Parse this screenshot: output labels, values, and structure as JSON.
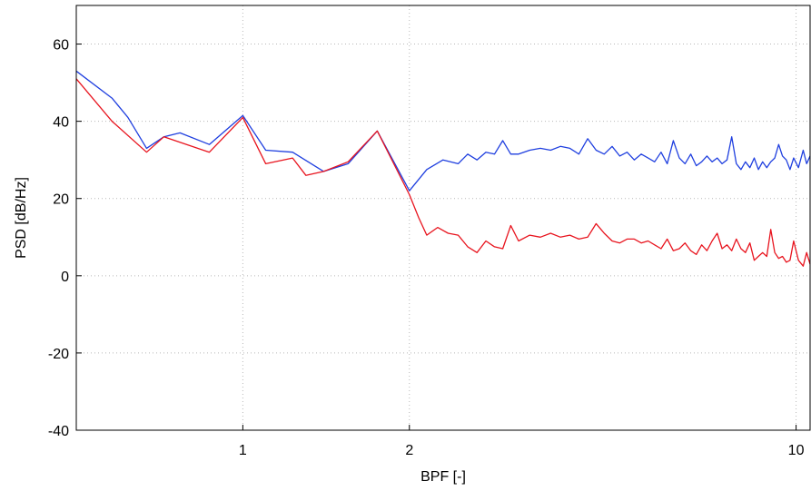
{
  "chart_data": {
    "type": "line",
    "xlabel": "BPF [-]",
    "ylabel": "PSD [dB/Hz]",
    "xscale": "log",
    "xlim": [
      0.5,
      10.6
    ],
    "ylim": [
      -40,
      70
    ],
    "xticks": [
      1,
      2,
      10
    ],
    "xtick_labels": [
      "1",
      "2",
      "10"
    ],
    "yticks": [
      -40,
      -20,
      0,
      20,
      40,
      60
    ],
    "ytick_labels": [
      "-40",
      "-20",
      "0",
      "20",
      "40",
      "60"
    ],
    "grid": true,
    "series": [
      {
        "color": "#1f3fdf",
        "x": [
          0.5,
          0.58,
          0.62,
          0.67,
          0.72,
          0.77,
          0.87,
          1.0,
          1.1,
          1.23,
          1.4,
          1.55,
          1.75,
          2.0,
          2.15,
          2.3,
          2.45,
          2.55,
          2.65,
          2.75,
          2.85,
          2.95,
          3.05,
          3.15,
          3.3,
          3.45,
          3.6,
          3.75,
          3.9,
          4.05,
          4.2,
          4.35,
          4.5,
          4.65,
          4.8,
          4.95,
          5.1,
          5.25,
          5.4,
          5.55,
          5.7,
          5.85,
          6.0,
          6.15,
          6.3,
          6.45,
          6.6,
          6.75,
          6.9,
          7.05,
          7.2,
          7.35,
          7.5,
          7.65,
          7.8,
          7.95,
          8.1,
          8.25,
          8.4,
          8.55,
          8.7,
          8.85,
          9.0,
          9.15,
          9.3,
          9.45,
          9.6,
          9.75,
          9.9,
          10.1,
          10.3,
          10.45,
          10.6
        ],
        "values": [
          53,
          46,
          41,
          33,
          36,
          37,
          34,
          41.5,
          32.5,
          32,
          27,
          29,
          37.5,
          22,
          27.5,
          30,
          29,
          31.5,
          30,
          32,
          31.5,
          35,
          31.5,
          31.5,
          32.5,
          33,
          32.5,
          33.5,
          33,
          31.5,
          35.5,
          32.5,
          31.5,
          33.5,
          31,
          32,
          30,
          31.5,
          30.5,
          29.5,
          32,
          29,
          35,
          30.5,
          29,
          31.5,
          28.5,
          29.5,
          31,
          29.5,
          30.5,
          29,
          30,
          36,
          29,
          27.5,
          29.5,
          28,
          30.5,
          27.5,
          29.5,
          28,
          29.5,
          30.5,
          34,
          31,
          30,
          27.5,
          30.5,
          28,
          32.5,
          29,
          31
        ]
      },
      {
        "color": "#e8141e",
        "x": [
          0.5,
          0.58,
          0.67,
          0.72,
          0.87,
          1.0,
          1.1,
          1.23,
          1.3,
          1.4,
          1.55,
          1.75,
          2.0,
          2.08,
          2.15,
          2.25,
          2.35,
          2.45,
          2.55,
          2.65,
          2.75,
          2.85,
          2.95,
          3.05,
          3.15,
          3.3,
          3.45,
          3.6,
          3.75,
          3.9,
          4.05,
          4.2,
          4.35,
          4.5,
          4.65,
          4.8,
          4.95,
          5.1,
          5.25,
          5.4,
          5.55,
          5.7,
          5.85,
          6.0,
          6.15,
          6.3,
          6.45,
          6.6,
          6.75,
          6.9,
          7.05,
          7.2,
          7.35,
          7.5,
          7.65,
          7.8,
          7.95,
          8.1,
          8.25,
          8.4,
          8.55,
          8.7,
          8.85,
          9.0,
          9.15,
          9.3,
          9.45,
          9.6,
          9.75,
          9.9,
          10.1,
          10.3,
          10.45,
          10.6
        ],
        "values": [
          51,
          40,
          32,
          36,
          32,
          41,
          29,
          30.5,
          26,
          27,
          29.5,
          37.5,
          21,
          15,
          10.5,
          12.5,
          11,
          10.5,
          7.5,
          6,
          9,
          7.5,
          7,
          13,
          9,
          10.5,
          10,
          11,
          10,
          10.5,
          9.5,
          10,
          13.5,
          11,
          9,
          8.5,
          9.5,
          9.5,
          8.5,
          9,
          8,
          7,
          9.5,
          6.5,
          7,
          8.5,
          6.5,
          5.5,
          8,
          6.5,
          9,
          11,
          7,
          8,
          6.5,
          9.5,
          7,
          6,
          8.5,
          4,
          5,
          6,
          5,
          12,
          6,
          4.5,
          5,
          3.5,
          4,
          9,
          4,
          2.5,
          6,
          3
        ]
      }
    ]
  }
}
